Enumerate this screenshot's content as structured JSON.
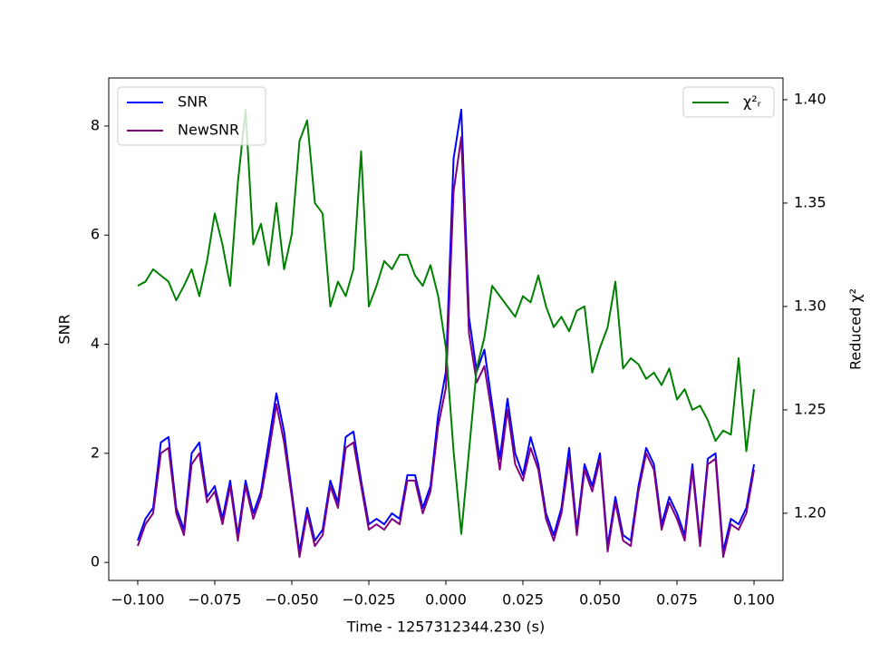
{
  "chart_data": {
    "type": "line",
    "xlabel": "Time - 1257312344.230 (s)",
    "ylabel": "SNR",
    "y2label": "Reduced χ²",
    "x": [
      -0.1,
      -0.0975,
      -0.095,
      -0.0925,
      -0.09,
      -0.0875,
      -0.085,
      -0.0825,
      -0.08,
      -0.0775,
      -0.075,
      -0.0725,
      -0.07,
      -0.0675,
      -0.065,
      -0.0625,
      -0.06,
      -0.0575,
      -0.055,
      -0.0525,
      -0.05,
      -0.0475,
      -0.045,
      -0.0425,
      -0.04,
      -0.0375,
      -0.035,
      -0.0325,
      -0.03,
      -0.0275,
      -0.025,
      -0.0225,
      -0.02,
      -0.0175,
      -0.015,
      -0.0125,
      -0.01,
      -0.0075,
      -0.005,
      -0.0025,
      0,
      0.0025,
      0.005,
      0.0075,
      0.01,
      0.0125,
      0.015,
      0.0175,
      0.02,
      0.0225,
      0.025,
      0.0275,
      0.03,
      0.0325,
      0.035,
      0.0375,
      0.04,
      0.0425,
      0.045,
      0.0475,
      0.05,
      0.0525,
      0.055,
      0.0575,
      0.06,
      0.0625,
      0.065,
      0.0675,
      0.07,
      0.0725,
      0.075,
      0.0775,
      0.08,
      0.0825,
      0.085,
      0.0875,
      0.09,
      0.0925,
      0.095,
      0.0975,
      0.1
    ],
    "series": [
      {
        "name": "SNR",
        "color": "#0000ff",
        "values": [
          0.4,
          0.8,
          1.0,
          2.2,
          2.3,
          1.0,
          0.6,
          2.0,
          2.2,
          1.2,
          1.4,
          0.8,
          1.5,
          0.5,
          1.5,
          0.9,
          1.3,
          2.2,
          3.1,
          2.4,
          1.3,
          0.2,
          1.0,
          0.4,
          0.6,
          1.5,
          1.1,
          2.3,
          2.4,
          1.5,
          0.7,
          0.8,
          0.7,
          0.9,
          0.8,
          1.6,
          1.6,
          1.0,
          1.4,
          2.7,
          3.5,
          7.4,
          8.3,
          4.5,
          3.5,
          3.9,
          2.9,
          1.9,
          3.0,
          2.0,
          1.6,
          2.3,
          1.8,
          0.9,
          0.5,
          1.0,
          2.1,
          0.6,
          1.8,
          1.4,
          2.0,
          0.3,
          1.2,
          0.5,
          0.4,
          1.4,
          2.1,
          1.8,
          0.7,
          1.2,
          0.9,
          0.5,
          1.8,
          0.4,
          1.9,
          2.0,
          0.2,
          0.8,
          0.7,
          1.0,
          1.8
        ]
      },
      {
        "name": "NewSNR",
        "color": "#800080",
        "values": [
          0.3,
          0.7,
          0.9,
          2.0,
          2.1,
          0.9,
          0.5,
          1.8,
          2.0,
          1.1,
          1.3,
          0.7,
          1.4,
          0.4,
          1.4,
          0.8,
          1.2,
          2.0,
          2.9,
          2.2,
          1.2,
          0.1,
          0.9,
          0.3,
          0.5,
          1.4,
          1.0,
          2.1,
          2.2,
          1.4,
          0.6,
          0.7,
          0.6,
          0.8,
          0.7,
          1.5,
          1.5,
          0.9,
          1.3,
          2.5,
          3.2,
          6.8,
          7.8,
          4.2,
          3.3,
          3.6,
          2.7,
          1.7,
          2.8,
          1.8,
          1.5,
          2.1,
          1.7,
          0.8,
          0.4,
          0.9,
          1.9,
          0.5,
          1.7,
          1.3,
          1.9,
          0.2,
          1.1,
          0.4,
          0.3,
          1.3,
          2.0,
          1.7,
          0.6,
          1.1,
          0.8,
          0.4,
          1.7,
          0.3,
          1.8,
          1.9,
          0.1,
          0.7,
          0.6,
          0.9,
          1.7
        ]
      },
      {
        "name": "χ²ᵣ",
        "color": "#008000",
        "axis": "y2",
        "values": [
          1.31,
          1.312,
          1.318,
          1.315,
          1.312,
          1.303,
          1.31,
          1.318,
          1.305,
          1.322,
          1.345,
          1.33,
          1.31,
          1.36,
          1.395,
          1.33,
          1.34,
          1.32,
          1.35,
          1.318,
          1.335,
          1.38,
          1.39,
          1.35,
          1.345,
          1.3,
          1.312,
          1.305,
          1.318,
          1.375,
          1.3,
          1.31,
          1.322,
          1.318,
          1.325,
          1.325,
          1.315,
          1.31,
          1.32,
          1.305,
          1.28,
          1.23,
          1.19,
          1.23,
          1.27,
          1.285,
          1.31,
          1.305,
          1.3,
          1.295,
          1.305,
          1.302,
          1.315,
          1.3,
          1.29,
          1.295,
          1.288,
          1.298,
          1.3,
          1.268,
          1.28,
          1.29,
          1.312,
          1.27,
          1.275,
          1.272,
          1.265,
          1.268,
          1.262,
          1.27,
          1.255,
          1.26,
          1.25,
          1.252,
          1.245,
          1.235,
          1.24,
          1.238,
          1.275,
          1.23,
          1.26
        ]
      }
    ],
    "xlim": [
      -0.1094,
      0.1094
    ],
    "xticks": [
      {
        "value": -0.1,
        "label": "−0.100"
      },
      {
        "value": -0.075,
        "label": "−0.075"
      },
      {
        "value": -0.05,
        "label": "−0.050"
      },
      {
        "value": -0.025,
        "label": "−0.025"
      },
      {
        "value": 0,
        "label": "0.000"
      },
      {
        "value": 0.025,
        "label": "0.025"
      },
      {
        "value": 0.05,
        "label": "0.050"
      },
      {
        "value": 0.075,
        "label": "0.075"
      },
      {
        "value": 0.1,
        "label": "0.100"
      }
    ],
    "ylim": [
      -0.33,
      8.88
    ],
    "yticks": [
      0,
      2,
      4,
      6,
      8
    ],
    "y2lim": [
      1.1675,
      1.4105
    ],
    "y2ticks": [
      {
        "value": 1.2,
        "label": "1.20"
      },
      1.25,
      {
        "value": 1.3,
        "label": "1.30"
      },
      1.35,
      {
        "value": 1.4,
        "label": "1.40"
      }
    ],
    "legend": "upper left",
    "legend2": "upper right",
    "grid": false
  }
}
